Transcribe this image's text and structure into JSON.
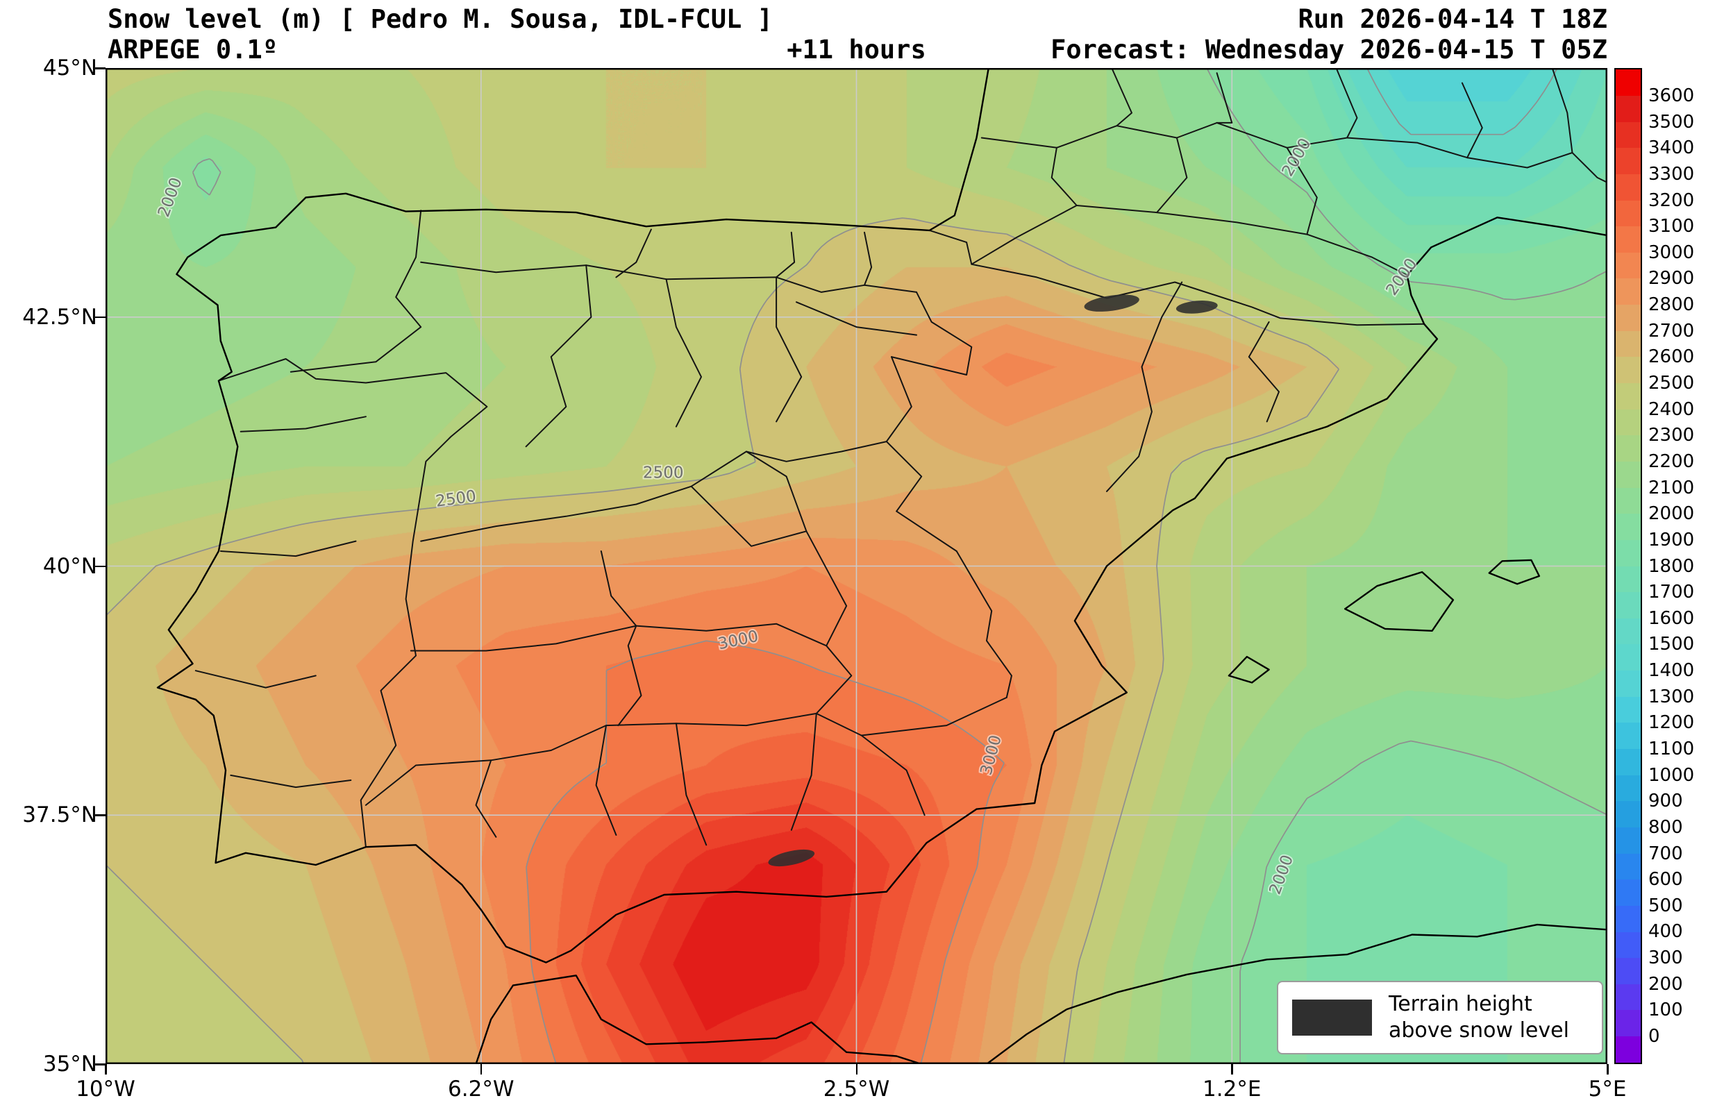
{
  "header": {
    "title": "Snow level (m) [ Pedro M. Sousa, IDL-FCUL ]",
    "model": "ARPEGE 0.1º",
    "lead": "+11 hours",
    "run": "Run 2026-04-14 T 18Z",
    "forecast": "Forecast: Wednesday 2026-04-15 T 05Z"
  },
  "legend": {
    "line1": "Terrain height",
    "line2": "above snow level",
    "swatch_color": "#2f2f2f"
  },
  "axes": {
    "lat_ticks": [
      {
        "label": "45°N",
        "value": 45
      },
      {
        "label": "42.5°N",
        "value": 42.5
      },
      {
        "label": "40°N",
        "value": 40
      },
      {
        "label": "37.5°N",
        "value": 37.5
      },
      {
        "label": "35°N",
        "value": 35
      }
    ],
    "lon_ticks": [
      {
        "label": "10°W",
        "value": -10
      },
      {
        "label": "6.2°W",
        "value": -6.25
      },
      {
        "label": "2.5°W",
        "value": -2.5
      },
      {
        "label": "1.2°E",
        "value": 1.25
      },
      {
        "label": "5°E",
        "value": 5
      }
    ],
    "grid_lats": [
      42.5,
      40,
      37.5
    ],
    "grid_lons": [
      -6.25,
      -2.5,
      1.25
    ]
  },
  "colorbar": {
    "unit": "m",
    "min": 0,
    "max": 3600,
    "step": 100,
    "tick_labels": [
      "3600",
      "3500",
      "3400",
      "3300",
      "3200",
      "3100",
      "3000",
      "2900",
      "2800",
      "2700",
      "2600",
      "2500",
      "2400",
      "2300",
      "2200",
      "2100",
      "2000",
      "1900",
      "1800",
      "1700",
      "1600",
      "1500",
      "1400",
      "1300",
      "1200",
      "1100",
      "1000",
      "900",
      "800",
      "700",
      "600",
      "500",
      "400",
      "300",
      "200",
      "100",
      "0"
    ],
    "band_colors": [
      "#7d00de",
      "#6b24e8",
      "#5b3af0",
      "#4d4cf5",
      "#415cf8",
      "#376bf8",
      "#2f79f4",
      "#2986ee",
      "#2593e6",
      "#259fe0",
      "#29abde",
      "#31b7de",
      "#3dc3de",
      "#49cddc",
      "#55d3d4",
      "#5dd7cc",
      "#63d8c6",
      "#6bdabc",
      "#73dcb2",
      "#7cdda9",
      "#85dda0",
      "#8fdb96",
      "#9bd88d",
      "#a8d584",
      "#b5d17e",
      "#c2cc79",
      "#cfc275",
      "#dab46e",
      "#e5a465",
      "#ee955b",
      "#f28651",
      "#f37747",
      "#f2663d",
      "#f05434",
      "#ec422b",
      "#e73022",
      "#e21d19",
      "#ef0000"
    ]
  },
  "chart_data": {
    "type": "filled-contour-map",
    "title": "Snow level (m)",
    "units": "m",
    "lon_range": [
      -10,
      5
    ],
    "lat_range": [
      35,
      45
    ],
    "lons": [
      -10,
      -9,
      -8,
      -7,
      -6,
      -5,
      -4,
      -3,
      -2,
      -1,
      0,
      1,
      2,
      3,
      4,
      5
    ],
    "lats": [
      45,
      44,
      43,
      42,
      41,
      40,
      39,
      38,
      37,
      36,
      35
    ],
    "values": [
      [
        2450,
        2400,
        2350,
        2400,
        2450,
        2500,
        2500,
        2450,
        2400,
        2350,
        2200,
        2000,
        1800,
        1300,
        1300,
        1700
      ],
      [
        2300,
        1950,
        2250,
        2350,
        2450,
        2500,
        2500,
        2450,
        2400,
        2300,
        2200,
        2100,
        1950,
        1600,
        1600,
        1800
      ],
      [
        2150,
        2100,
        2150,
        2250,
        2350,
        2400,
        2450,
        2500,
        2600,
        2600,
        2450,
        2350,
        2150,
        1950,
        1950,
        2000
      ],
      [
        2100,
        2150,
        2200,
        2250,
        2300,
        2350,
        2450,
        2600,
        2750,
        2950,
        2850,
        2750,
        2600,
        2300,
        2100,
        2050
      ],
      [
        2200,
        2250,
        2300,
        2300,
        2350,
        2400,
        2450,
        2550,
        2650,
        2700,
        2600,
        2450,
        2400,
        2150,
        2100,
        2050
      ],
      [
        2450,
        2550,
        2650,
        2750,
        2800,
        2800,
        2850,
        2900,
        2850,
        2750,
        2650,
        2350,
        2200,
        2150,
        2100,
        2100
      ],
      [
        2550,
        2650,
        2750,
        2850,
        2950,
        3000,
        3050,
        3000,
        2950,
        2900,
        2700,
        2350,
        2200,
        2150,
        2150,
        2100
      ],
      [
        2550,
        2600,
        2700,
        2800,
        2900,
        3000,
        3100,
        3150,
        3100,
        3000,
        2600,
        2250,
        2050,
        1950,
        2000,
        2050
      ],
      [
        2500,
        2550,
        2600,
        2750,
        2950,
        3200,
        3450,
        3550,
        3250,
        2900,
        2500,
        2150,
        1900,
        1850,
        1900,
        1950
      ],
      [
        2450,
        2500,
        2550,
        2700,
        2900,
        3300,
        3600,
        3550,
        3150,
        2750,
        2400,
        2050,
        1900,
        1850,
        1900,
        1950
      ],
      [
        2400,
        2450,
        2500,
        2650,
        2850,
        3150,
        3450,
        3350,
        3050,
        2700,
        2350,
        2050,
        1900,
        1850,
        1900,
        1950
      ]
    ],
    "contour_levels": [
      1500,
      2000,
      2500,
      3000
    ],
    "contour_labels": [
      {
        "text": "2000",
        "lon": -9.35,
        "lat": 43.7,
        "rot": -70
      },
      {
        "text": "2500",
        "lon": -6.5,
        "lat": 40.67,
        "rot": -8
      },
      {
        "text": "2500",
        "lon": -4.43,
        "lat": 40.93,
        "rot": 0
      },
      {
        "text": "3000",
        "lon": -3.68,
        "lat": 39.25,
        "rot": -12
      },
      {
        "text": "3000",
        "lon": -1.15,
        "lat": 38.1,
        "rot": -75
      },
      {
        "text": "2000",
        "lon": 1.9,
        "lat": 44.1,
        "rot": -60
      },
      {
        "text": "2000",
        "lon": 2.95,
        "lat": 42.9,
        "rot": -55
      },
      {
        "text": "2000",
        "lon": 1.75,
        "lat": 36.9,
        "rot": -70
      }
    ]
  }
}
